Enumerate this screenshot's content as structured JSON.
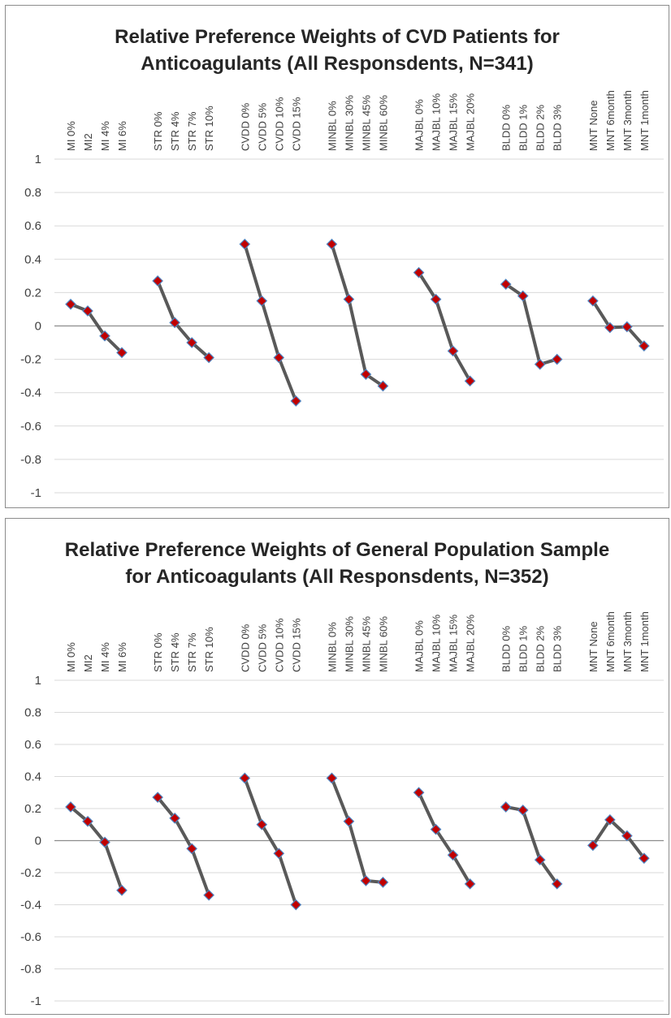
{
  "chart_data": [
    {
      "type": "line",
      "title": "Relative Preference Weights of CVD Patients for Anticoagulants (All Responsdents, N=341)",
      "title_lines": [
        "Relative Preference Weights of CVD Patients for",
        "Anticoagulants (All Responsdents, N=341)"
      ],
      "ylim": [
        -1,
        1
      ],
      "yticks": [
        "1",
        "0.8",
        "0.6",
        "0.4",
        "0.2",
        "0",
        "-0.2",
        "-0.4",
        "-0.6",
        "-0.8",
        "-1"
      ],
      "ytick_values": [
        1,
        0.8,
        0.6,
        0.4,
        0.2,
        0,
        -0.2,
        -0.4,
        -0.6,
        -0.8,
        -1
      ],
      "grid": true,
      "line_color": "#595959",
      "marker_color": "#c00000",
      "marker_edge": "#4f81bd",
      "categories": [
        {
          "labels": [
            "MI 0%",
            "MI2",
            "MI 4%",
            "MI 6%"
          ],
          "values": [
            0.13,
            0.09,
            -0.06,
            -0.16
          ]
        },
        {
          "labels": [
            "STR 0%",
            "STR 4%",
            "STR 7%",
            "STR 10%"
          ],
          "values": [
            0.27,
            0.02,
            -0.1,
            -0.19
          ]
        },
        {
          "labels": [
            "CVDD 0%",
            "CVDD 5%",
            "CVDD 10%",
            "CVDD 15%"
          ],
          "values": [
            0.49,
            0.15,
            -0.19,
            -0.45
          ]
        },
        {
          "labels": [
            "MINBL 0%",
            "MINBL 30%",
            "MINBL 45%",
            "MINBL 60%"
          ],
          "values": [
            0.49,
            0.16,
            -0.29,
            -0.36
          ]
        },
        {
          "labels": [
            "MAJBL 0%",
            "MAJBL 10%",
            "MAJBL 15%",
            "MAJBL 20%"
          ],
          "values": [
            0.32,
            0.16,
            -0.15,
            -0.33
          ]
        },
        {
          "labels": [
            "BLDD 0%",
            "BLDD 1%",
            "BLDD 2%",
            "BLDD 3%"
          ],
          "values": [
            0.25,
            0.18,
            -0.23,
            -0.2
          ]
        },
        {
          "labels": [
            "MNT None",
            "MNT 6month",
            "MNT 3month",
            "MNT 1month"
          ],
          "values": [
            0.15,
            -0.01,
            -0.005,
            -0.12
          ]
        }
      ]
    },
    {
      "type": "line",
      "title": "Relative Preference Weights of General Population Sample for Anticoagulants (All Responsdents, N=352)",
      "title_lines": [
        "Relative Preference Weights of General Population Sample",
        "for Anticoagulants (All Responsdents, N=352)"
      ],
      "ylim": [
        -1,
        1
      ],
      "yticks": [
        "1",
        "0.8",
        "0.6",
        "0.4",
        "0.2",
        "0",
        "-0.2",
        "-0.4",
        "-0.6",
        "-0.8",
        "-1"
      ],
      "ytick_values": [
        1,
        0.8,
        0.6,
        0.4,
        0.2,
        0,
        -0.2,
        -0.4,
        -0.6,
        -0.8,
        -1
      ],
      "grid": true,
      "line_color": "#595959",
      "marker_color": "#c00000",
      "marker_edge": "#4f81bd",
      "categories": [
        {
          "labels": [
            "MI 0%",
            "MI2",
            "MI 4%",
            "MI 6%"
          ],
          "values": [
            0.21,
            0.12,
            -0.01,
            -0.31
          ]
        },
        {
          "labels": [
            "STR 0%",
            "STR 4%",
            "STR 7%",
            "STR 10%"
          ],
          "values": [
            0.27,
            0.14,
            -0.05,
            -0.34
          ]
        },
        {
          "labels": [
            "CVDD 0%",
            "CVDD 5%",
            "CVDD 10%",
            "CVDD 15%"
          ],
          "values": [
            0.39,
            0.1,
            -0.08,
            -0.4
          ]
        },
        {
          "labels": [
            "MINBL 0%",
            "MINBL 30%",
            "MINBL 45%",
            "MINBL 60%"
          ],
          "values": [
            0.39,
            0.12,
            -0.25,
            -0.26
          ]
        },
        {
          "labels": [
            "MAJBL 0%",
            "MAJBL 10%",
            "MAJBL 15%",
            "MAJBL 20%"
          ],
          "values": [
            0.3,
            0.07,
            -0.09,
            -0.27
          ]
        },
        {
          "labels": [
            "BLDD 0%",
            "BLDD 1%",
            "BLDD 2%",
            "BLDD 3%"
          ],
          "values": [
            0.21,
            0.19,
            -0.12,
            -0.27
          ]
        },
        {
          "labels": [
            "MNT None",
            "MNT 6month",
            "MNT 3month",
            "MNT 1month"
          ],
          "values": [
            -0.03,
            0.13,
            0.03,
            -0.11
          ]
        }
      ]
    }
  ]
}
